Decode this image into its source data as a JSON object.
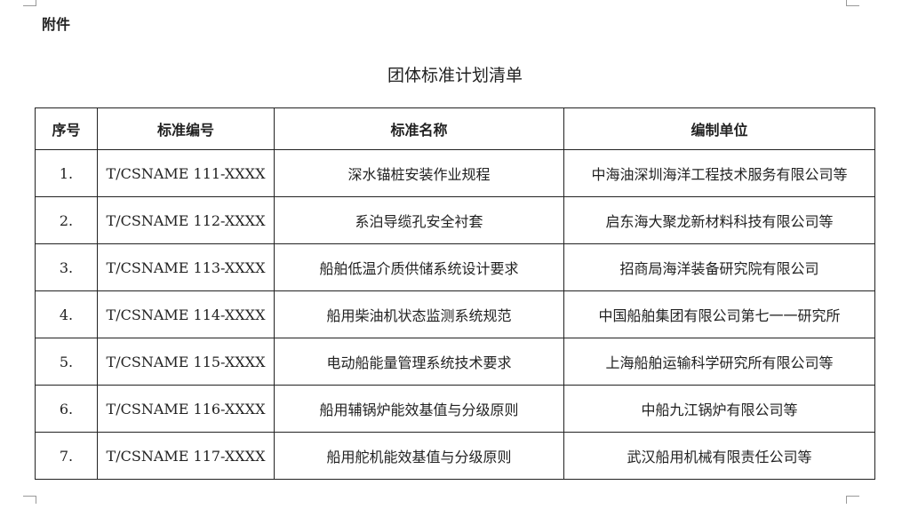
{
  "attachment_label": "附件",
  "title": "团体标准计划清单",
  "table": {
    "headers": [
      "序号",
      "标准编号",
      "标准名称",
      "编制单位"
    ],
    "rows": [
      [
        "1.",
        "T/CSNAME 111-XXXX",
        "深水锚桩安装作业规程",
        "中海油深圳海洋工程技术服务有限公司等"
      ],
      [
        "2.",
        "T/CSNAME 112-XXXX",
        "系泊导缆孔安全衬套",
        "启东海大聚龙新材料科技有限公司等"
      ],
      [
        "3.",
        "T/CSNAME 113-XXXX",
        "船舶低温介质供储系统设计要求",
        "招商局海洋装备研究院有限公司"
      ],
      [
        "4.",
        "T/CSNAME 114-XXXX",
        "船用柴油机状态监测系统规范",
        "中国船舶集团有限公司第七一一研究所"
      ],
      [
        "5.",
        "T/CSNAME 115-XXXX",
        "电动船能量管理系统技术要求",
        "上海船舶运输科学研究所有限公司等"
      ],
      [
        "6.",
        "T/CSNAME 116-XXXX",
        "船用辅锅炉能效基值与分级原则",
        "中船九江锅炉有限公司等"
      ],
      [
        "7.",
        "T/CSNAME 117-XXXX",
        "船用舵机能效基值与分级原则",
        "武汉船用机械有限责任公司等"
      ]
    ]
  }
}
